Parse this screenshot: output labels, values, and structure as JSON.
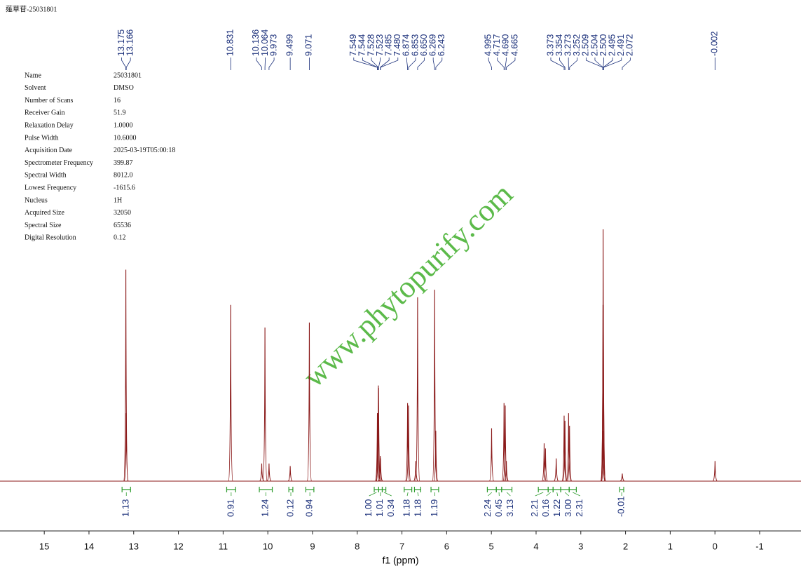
{
  "chart_data": {
    "type": "nmr",
    "title": "薤草苷-25031801",
    "watermark": "www.phytopurify.com",
    "xlabel": "f1 (ppm)",
    "xlim": [
      15.99,
      -1.925
    ],
    "ylim": [
      0,
      100
    ],
    "xticks": [
      15,
      14,
      13,
      12,
      11,
      10,
      9,
      8,
      7,
      6,
      5,
      4,
      3,
      2,
      1,
      0,
      -1
    ],
    "color": "#8b1a1a",
    "peaks": {
      "x": [
        13.175,
        13.166,
        10.831,
        10.136,
        10.064,
        9.973,
        9.499,
        9.071,
        7.549,
        7.544,
        7.528,
        7.523,
        7.485,
        7.48,
        6.874,
        6.853,
        6.69,
        6.65,
        6.269,
        6.243,
        4.995,
        4.717,
        4.69,
        4.665,
        3.82,
        3.79,
        3.55,
        3.373,
        3.354,
        3.273,
        3.252,
        2.509,
        2.504,
        2.5,
        2.495,
        2.491,
        2.072,
        -0.002
      ],
      "x_labels": [
        "13.175",
        "13.166",
        "10.831",
        "10.136",
        "10.064",
        "9.973",
        "9.499",
        "9.071",
        "7.549",
        "7.544",
        "7.528",
        "7.523",
        "7.485",
        "7.480",
        "6.874",
        "6.853",
        null,
        "6.650",
        "6.269",
        "6.243",
        "4.995",
        "4.717",
        "4.690",
        "4.665",
        null,
        null,
        null,
        "3.373",
        "3.354",
        "3.273",
        "3.252",
        "2.509",
        "2.504",
        "2.500",
        "2.495",
        "2.491",
        "2.072",
        "-0.002"
      ],
      "values": [
        84,
        27,
        70,
        7,
        61,
        7,
        6,
        63,
        27,
        27,
        38,
        37,
        10,
        9,
        31,
        30,
        8,
        73,
        76,
        20,
        21,
        31,
        30,
        8,
        15,
        13,
        9,
        26,
        24,
        27,
        22,
        20,
        70,
        100,
        70,
        20,
        3,
        8
      ],
      "label_color": "#1a2f7a"
    },
    "integrals": {
      "ranges": [
        [
          13.26,
          13.07
        ],
        [
          10.92,
          10.72
        ],
        [
          10.19,
          9.9
        ],
        [
          9.53,
          9.44
        ],
        [
          9.15,
          8.97
        ],
        [
          7.62,
          7.52
        ],
        [
          7.52,
          7.44
        ],
        [
          7.44,
          7.36
        ],
        [
          6.95,
          6.78
        ],
        [
          6.72,
          6.58
        ],
        [
          6.35,
          6.18
        ],
        [
          5.09,
          4.89
        ],
        [
          4.89,
          4.77
        ],
        [
          4.77,
          4.54
        ],
        [
          3.95,
          3.73
        ],
        [
          3.73,
          3.62
        ],
        [
          3.62,
          3.45
        ],
        [
          3.45,
          3.26
        ],
        [
          3.26,
          3.1
        ],
        [
          2.13,
          2.04
        ]
      ],
      "values": [
        1.13,
        0.91,
        1.24,
        0.12,
        0.94,
        1,
        1.01,
        0.34,
        1.18,
        1.18,
        1.19,
        2.24,
        0.45,
        3.13,
        2.21,
        0.16,
        1.22,
        3,
        2.31,
        -0.01
      ],
      "value_labels": [
        "1.13",
        "0.91",
        "1.24",
        "0.12",
        "0.94",
        "1.00",
        "1.01",
        "0.34",
        "1.18",
        "1.18",
        "1.19",
        "2.24",
        "0.45",
        "3.13",
        "2.21",
        "0.16",
        "1.22",
        "3.00",
        "2.31",
        "-0.01"
      ],
      "color": "#2e9c2e",
      "label_color": "#1a2f7a"
    },
    "parameters": [
      {
        "name": "Name",
        "value": "25031801"
      },
      {
        "name": "Solvent",
        "value": "DMSO"
      },
      {
        "name": "Number of Scans",
        "value": "16"
      },
      {
        "name": "Receiver Gain",
        "value": "51.9"
      },
      {
        "name": "Relaxation Delay",
        "value": "1.0000"
      },
      {
        "name": "Pulse Width",
        "value": "10.6000"
      },
      {
        "name": "Acquisition Date",
        "value": "2025-03-19T05:00:18"
      },
      {
        "name": "Spectrometer Frequency",
        "value": "399.87"
      },
      {
        "name": "Spectral Width",
        "value": "8012.0"
      },
      {
        "name": "Lowest Frequency",
        "value": "-1615.6"
      },
      {
        "name": "Nucleus",
        "value": "1H"
      },
      {
        "name": "Acquired Size",
        "value": "32050"
      },
      {
        "name": "Spectral Size",
        "value": "65536"
      },
      {
        "name": "Digital Resolution",
        "value": "0.12"
      }
    ]
  }
}
